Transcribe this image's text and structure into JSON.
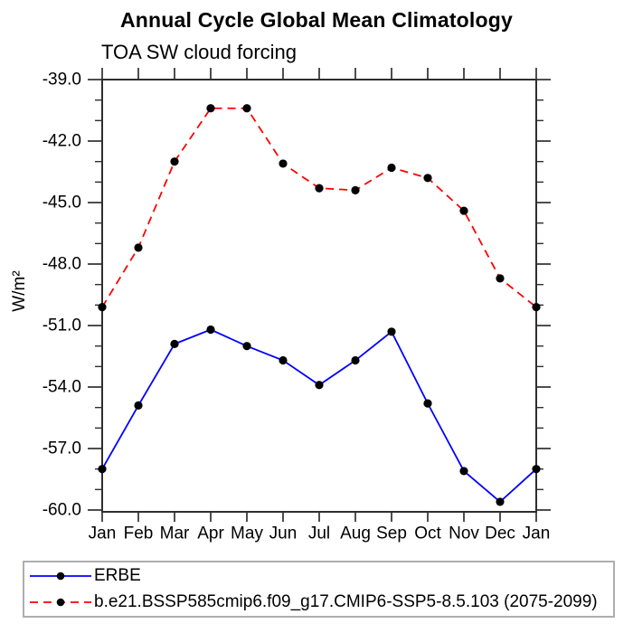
{
  "chart_data": {
    "type": "line",
    "title": "Annual Cycle Global Mean Climatology",
    "subtitle": "TOA SW cloud forcing",
    "ylabel": "W/m²",
    "xlabel": "",
    "categories": [
      "Jan",
      "Feb",
      "Mar",
      "Apr",
      "May",
      "Jun",
      "Jul",
      "Aug",
      "Sep",
      "Oct",
      "Nov",
      "Dec",
      "Jan"
    ],
    "ylim": [
      -60.0,
      -39.0
    ],
    "yticks": [
      -39.0,
      -42.0,
      -45.0,
      -48.0,
      -51.0,
      -54.0,
      -57.0,
      -60.0
    ],
    "ytick_labels": [
      "-39.0",
      "-42.0",
      "-45.0",
      "-48.0",
      "-51.0",
      "-54.0",
      "-57.0",
      "-60.0"
    ],
    "minor_tick_step": 1.0,
    "grid": false,
    "legend_position": "bottom-left",
    "axis_color": "#2e2e2e",
    "series": [
      {
        "name": "ERBE",
        "color": "#0000ff",
        "line_style": "solid",
        "marker": "filled-circle",
        "marker_color": "#000000",
        "values": [
          -58.0,
          -54.9,
          -51.9,
          -51.2,
          -52.0,
          -52.7,
          -53.9,
          -52.7,
          -51.3,
          -54.8,
          -58.1,
          -59.6,
          -58.0
        ]
      },
      {
        "name": "b.e21.BSSP585cmip6.f09_g17.CMIP6-SSP5-8.5.103 (2075-2099)",
        "color": "#ff0000",
        "line_style": "dashed",
        "marker": "filled-circle",
        "marker_color": "#000000",
        "values": [
          -50.1,
          -47.2,
          -43.0,
          -40.4,
          -40.4,
          -43.1,
          -44.3,
          -44.4,
          -43.3,
          -43.8,
          -45.4,
          -48.7,
          -50.1
        ]
      }
    ]
  }
}
